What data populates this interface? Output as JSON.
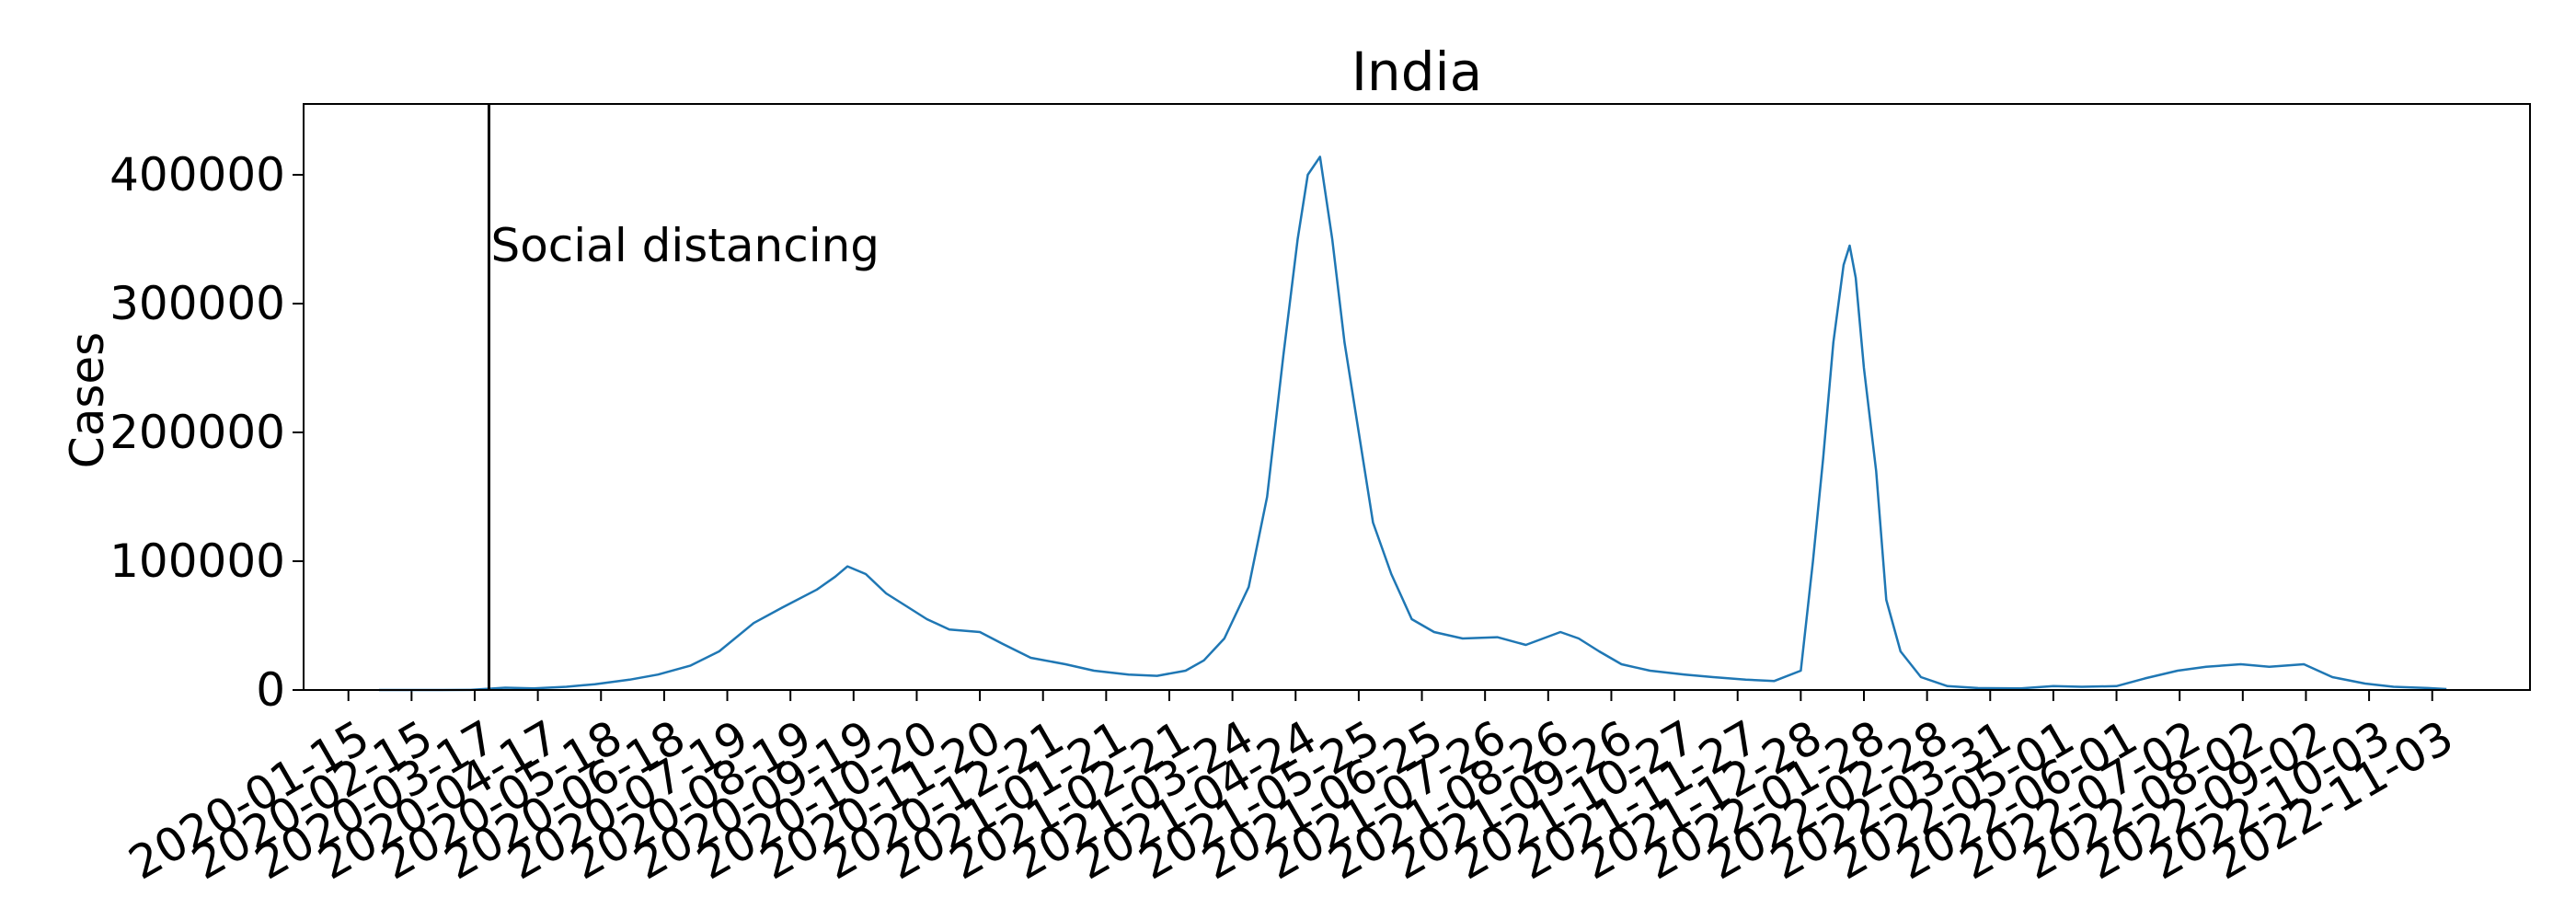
{
  "chart_data": {
    "type": "line",
    "title": "India",
    "xlabel": "",
    "ylabel": "Cases",
    "ylim": [
      0,
      455000
    ],
    "xlim": [
      "2019-12-24",
      "2022-12-21"
    ],
    "grid": false,
    "legend": "none",
    "colors": {
      "series": "#1f77b4",
      "annotation_line": "#000000",
      "frame": "#000000"
    },
    "yticks": [
      0,
      100000,
      200000,
      300000,
      400000
    ],
    "xticks": [
      "2020-01-15",
      "2020-02-15",
      "2020-03-17",
      "2020-04-17",
      "2020-05-18",
      "2020-06-18",
      "2020-07-19",
      "2020-08-19",
      "2020-09-19",
      "2020-10-20",
      "2020-11-20",
      "2020-12-21",
      "2021-01-21",
      "2021-02-21",
      "2021-03-24",
      "2021-04-24",
      "2021-05-25",
      "2021-06-25",
      "2021-07-26",
      "2021-08-26",
      "2021-09-26",
      "2021-10-27",
      "2021-11-27",
      "2021-12-28",
      "2022-01-28",
      "2022-02-28",
      "2022-03-31",
      "2022-05-01",
      "2022-06-01",
      "2022-07-02",
      "2022-08-02",
      "2022-09-02",
      "2022-10-03",
      "2022-11-03"
    ],
    "annotations": [
      {
        "x": "2020-03-24",
        "label": "Social distancing"
      }
    ],
    "series": [
      {
        "x": [
          "2020-01-30",
          "2020-03-01",
          "2020-03-15",
          "2020-04-01",
          "2020-04-15",
          "2020-05-01",
          "2020-05-15",
          "2020-06-01",
          "2020-06-15",
          "2020-07-01",
          "2020-07-15",
          "2020-08-01",
          "2020-08-15",
          "2020-09-01",
          "2020-09-10",
          "2020-09-16",
          "2020-09-25",
          "2020-10-05",
          "2020-10-15",
          "2020-10-25",
          "2020-11-05",
          "2020-11-20",
          "2020-12-01",
          "2020-12-15",
          "2021-01-01",
          "2021-01-15",
          "2021-02-01",
          "2021-02-15",
          "2021-03-01",
          "2021-03-10",
          "2021-03-20",
          "2021-04-01",
          "2021-04-10",
          "2021-04-18",
          "2021-04-25",
          "2021-04-30",
          "2021-05-06",
          "2021-05-12",
          "2021-05-18",
          "2021-05-25",
          "2021-06-01",
          "2021-06-10",
          "2021-06-20",
          "2021-07-01",
          "2021-07-15",
          "2021-08-01",
          "2021-08-15",
          "2021-09-01",
          "2021-09-10",
          "2021-09-20",
          "2021-10-01",
          "2021-10-15",
          "2021-11-01",
          "2021-11-15",
          "2021-12-01",
          "2021-12-15",
          "2021-12-28",
          "2022-01-03",
          "2022-01-08",
          "2022-01-13",
          "2022-01-18",
          "2022-01-21",
          "2022-01-24",
          "2022-01-28",
          "2022-02-03",
          "2022-02-08",
          "2022-02-15",
          "2022-02-25",
          "2022-03-10",
          "2022-03-25",
          "2022-04-15",
          "2022-05-01",
          "2022-05-15",
          "2022-06-01",
          "2022-06-15",
          "2022-07-01",
          "2022-07-15",
          "2022-08-01",
          "2022-08-15",
          "2022-09-01",
          "2022-09-15",
          "2022-10-01",
          "2022-10-15",
          "2022-11-01",
          "2022-11-10"
        ],
        "values": [
          0,
          0,
          100,
          1800,
          1300,
          2500,
          4500,
          8000,
          12000,
          19000,
          30000,
          52000,
          64000,
          78000,
          88000,
          96000,
          90000,
          75000,
          65000,
          55000,
          47000,
          45000,
          36000,
          25000,
          20000,
          15000,
          12000,
          11000,
          15000,
          23000,
          40000,
          80000,
          150000,
          260000,
          350000,
          400000,
          414000,
          350000,
          270000,
          200000,
          130000,
          90000,
          55000,
          45000,
          40000,
          41000,
          35000,
          45000,
          40000,
          30000,
          20000,
          15000,
          12000,
          10000,
          8000,
          7000,
          15000,
          100000,
          180000,
          270000,
          330000,
          345000,
          320000,
          250000,
          170000,
          70000,
          30000,
          10000,
          3000,
          1500,
          1200,
          3000,
          2500,
          3000,
          9000,
          15000,
          18000,
          20000,
          18000,
          20000,
          10000,
          5000,
          2500,
          1500,
          700
        ]
      }
    ]
  }
}
